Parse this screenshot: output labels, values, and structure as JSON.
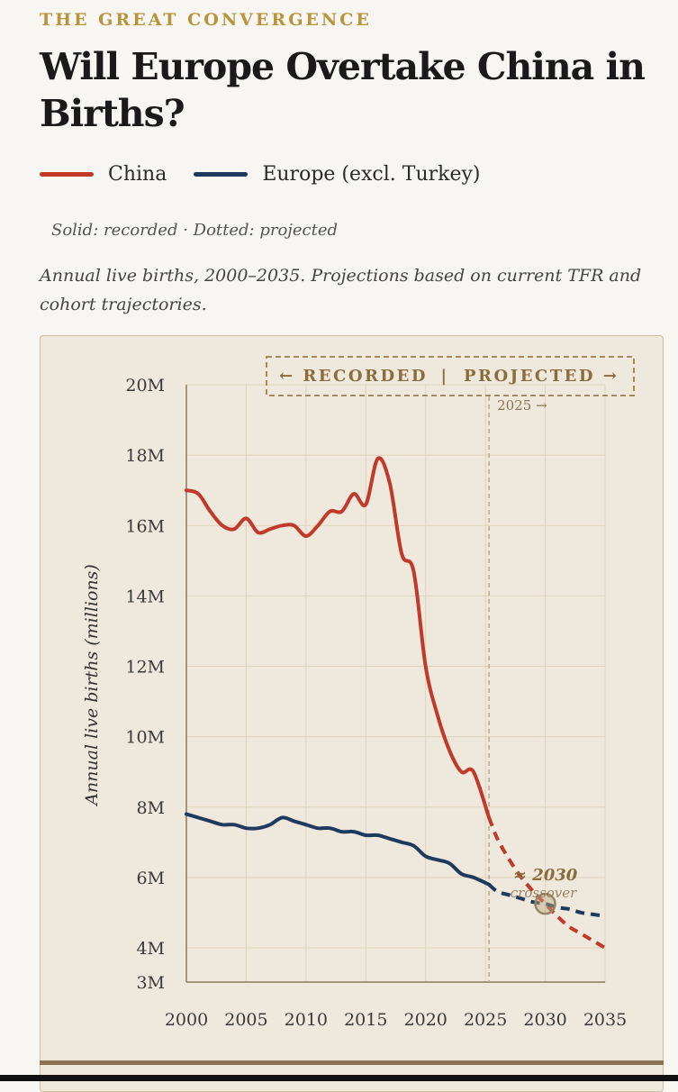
{
  "header": {
    "kicker": "THE GREAT CONVERGENCE",
    "title": "Will Europe Overtake China in Births?",
    "note": "Solid: recorded · Dotted: projected",
    "subtitle": "Annual live births, 2000–2035. Projections based on current TFR and cohort trajectories."
  },
  "colors": {
    "china": "#c0392b",
    "europe": "#1f3a5f",
    "accent": "#b8943a",
    "panel": "#efe8dc"
  },
  "chart_data": {
    "type": "line",
    "title": "Will Europe Overtake China in Births?",
    "xlabel": "",
    "ylabel": "Annual live births (millions)",
    "xlim": [
      2000,
      2035
    ],
    "ylim": [
      3,
      20
    ],
    "x_ticks": [
      2000,
      2005,
      2010,
      2015,
      2020,
      2025,
      2030,
      2035
    ],
    "x_tick_labels": [
      "2000",
      "2005",
      "2010",
      "2015",
      "2020",
      "2025",
      "2030",
      "2035"
    ],
    "y_ticks": [
      3,
      4,
      6,
      8,
      10,
      12,
      14,
      16,
      18,
      20
    ],
    "y_tick_labels": [
      "3M",
      "4M",
      "6M",
      "8M",
      "10M",
      "12M",
      "14M",
      "16M",
      "18M",
      "20M"
    ],
    "grid": true,
    "divider": {
      "x": 2025.3,
      "label": "2025 →"
    },
    "banner": {
      "left": "← RECORDED",
      "sep": "|",
      "right": "PROJECTED →"
    },
    "crossover": {
      "x": 2030,
      "y": 5.25,
      "label": "≈ 2030",
      "sublabel": "crossover"
    },
    "series": [
      {
        "name": "China",
        "color": "#c0392b",
        "recorded": {
          "x": [
            2000,
            2001,
            2002,
            2003,
            2004,
            2005,
            2006,
            2007,
            2008,
            2009,
            2010,
            2011,
            2012,
            2013,
            2014,
            2015,
            2016,
            2017,
            2018,
            2019,
            2020,
            2021,
            2022,
            2023,
            2024,
            2025.3
          ],
          "y": [
            17.0,
            16.9,
            16.4,
            16.0,
            15.9,
            16.2,
            15.8,
            15.9,
            16.0,
            16.0,
            15.7,
            16.0,
            16.4,
            16.4,
            16.9,
            16.6,
            17.9,
            17.2,
            15.2,
            14.7,
            12.0,
            10.6,
            9.6,
            9.0,
            9.0,
            7.7
          ]
        },
        "projected": {
          "x": [
            2025.3,
            2026,
            2027,
            2028,
            2029,
            2030,
            2031,
            2032,
            2033,
            2034,
            2035
          ],
          "y": [
            7.7,
            7.1,
            6.5,
            6.0,
            5.6,
            5.25,
            4.9,
            4.6,
            4.4,
            4.2,
            4.0
          ]
        }
      },
      {
        "name": "Europe (excl. Turkey)",
        "color": "#1f3a5f",
        "recorded": {
          "x": [
            2000,
            2001,
            2002,
            2003,
            2004,
            2005,
            2006,
            2007,
            2008,
            2009,
            2010,
            2011,
            2012,
            2013,
            2014,
            2015,
            2016,
            2017,
            2018,
            2019,
            2020,
            2021,
            2022,
            2023,
            2024,
            2025.3
          ],
          "y": [
            7.8,
            7.7,
            7.6,
            7.5,
            7.5,
            7.4,
            7.4,
            7.5,
            7.7,
            7.6,
            7.5,
            7.4,
            7.4,
            7.3,
            7.3,
            7.2,
            7.2,
            7.1,
            7.0,
            6.9,
            6.6,
            6.5,
            6.4,
            6.1,
            6.0,
            5.8
          ]
        },
        "projected": {
          "x": [
            2025.3,
            2026,
            2027,
            2028,
            2029,
            2030,
            2031,
            2032,
            2033,
            2034,
            2035
          ],
          "y": [
            5.8,
            5.6,
            5.5,
            5.4,
            5.3,
            5.25,
            5.15,
            5.1,
            5.0,
            4.95,
            4.9
          ]
        }
      }
    ]
  }
}
